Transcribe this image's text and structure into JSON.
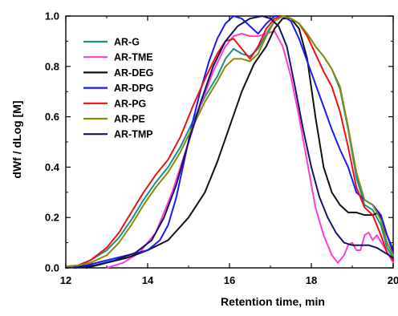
{
  "chart_data": {
    "type": "line",
    "xlabel": "Retention time, min",
    "ylabel": "dWf / dLog [M]",
    "xlim": [
      12,
      20
    ],
    "ylim": [
      0,
      1.0
    ],
    "xticks": [
      12,
      14,
      16,
      18,
      20
    ],
    "yticks": [
      0.0,
      0.2,
      0.4,
      0.6,
      0.8,
      1.0
    ],
    "x_tick_labels": [
      "12",
      "14",
      "16",
      "18",
      "20"
    ],
    "y_tick_labels": [
      "0.0",
      "0.2",
      "0.4",
      "0.6",
      "0.8",
      "1.0"
    ],
    "grid": false,
    "legend_position": "top-left",
    "series": [
      {
        "name": "AR-G",
        "color": "#1a8f8a",
        "points": [
          [
            12.0,
            0.005
          ],
          [
            12.3,
            0.01
          ],
          [
            12.6,
            0.03
          ],
          [
            13.0,
            0.07
          ],
          [
            13.3,
            0.12
          ],
          [
            13.6,
            0.19
          ],
          [
            13.9,
            0.27
          ],
          [
            14.2,
            0.34
          ],
          [
            14.5,
            0.4
          ],
          [
            14.8,
            0.48
          ],
          [
            15.1,
            0.58
          ],
          [
            15.4,
            0.68
          ],
          [
            15.7,
            0.76
          ],
          [
            15.9,
            0.83
          ],
          [
            16.1,
            0.87
          ],
          [
            16.3,
            0.85
          ],
          [
            16.5,
            0.84
          ],
          [
            16.7,
            0.87
          ],
          [
            16.9,
            0.93
          ],
          [
            17.1,
            0.98
          ],
          [
            17.3,
            1.0
          ],
          [
            17.5,
            0.99
          ],
          [
            17.7,
            0.97
          ],
          [
            17.9,
            0.93
          ],
          [
            18.1,
            0.88
          ],
          [
            18.3,
            0.84
          ],
          [
            18.5,
            0.79
          ],
          [
            18.7,
            0.71
          ],
          [
            18.9,
            0.55
          ],
          [
            19.1,
            0.36
          ],
          [
            19.3,
            0.25
          ],
          [
            19.5,
            0.23
          ],
          [
            19.7,
            0.17
          ],
          [
            19.85,
            0.08
          ],
          [
            20.0,
            0.04
          ]
        ]
      },
      {
        "name": "AR-TME",
        "color": "#ff3cd2",
        "points": [
          [
            13.0,
            0.0
          ],
          [
            13.4,
            0.02
          ],
          [
            13.8,
            0.06
          ],
          [
            14.2,
            0.14
          ],
          [
            14.6,
            0.3
          ],
          [
            15.0,
            0.5
          ],
          [
            15.3,
            0.65
          ],
          [
            15.6,
            0.78
          ],
          [
            15.9,
            0.88
          ],
          [
            16.1,
            0.92
          ],
          [
            16.3,
            0.93
          ],
          [
            16.5,
            0.92
          ],
          [
            16.7,
            0.92
          ],
          [
            16.9,
            0.93
          ],
          [
            17.1,
            0.94
          ],
          [
            17.3,
            0.88
          ],
          [
            17.5,
            0.76
          ],
          [
            17.7,
            0.6
          ],
          [
            17.9,
            0.42
          ],
          [
            18.1,
            0.24
          ],
          [
            18.3,
            0.13
          ],
          [
            18.5,
            0.05
          ],
          [
            18.65,
            0.02
          ],
          [
            18.8,
            0.05
          ],
          [
            18.9,
            0.09
          ],
          [
            19.0,
            0.1
          ],
          [
            19.1,
            0.07
          ],
          [
            19.2,
            0.07
          ],
          [
            19.3,
            0.13
          ],
          [
            19.4,
            0.14
          ],
          [
            19.5,
            0.11
          ],
          [
            19.6,
            0.13
          ],
          [
            19.75,
            0.09
          ],
          [
            19.9,
            0.05
          ],
          [
            20.0,
            0.02
          ]
        ]
      },
      {
        "name": "AR-DEG",
        "color": "#111111",
        "points": [
          [
            12.5,
            0.0
          ],
          [
            13.0,
            0.02
          ],
          [
            13.5,
            0.04
          ],
          [
            14.0,
            0.07
          ],
          [
            14.5,
            0.11
          ],
          [
            15.0,
            0.2
          ],
          [
            15.4,
            0.3
          ],
          [
            15.7,
            0.42
          ],
          [
            16.0,
            0.56
          ],
          [
            16.3,
            0.7
          ],
          [
            16.6,
            0.81
          ],
          [
            16.9,
            0.88
          ],
          [
            17.1,
            0.95
          ],
          [
            17.3,
            0.99
          ],
          [
            17.5,
            0.99
          ],
          [
            17.7,
            0.95
          ],
          [
            17.9,
            0.83
          ],
          [
            18.1,
            0.6
          ],
          [
            18.3,
            0.4
          ],
          [
            18.5,
            0.3
          ],
          [
            18.7,
            0.25
          ],
          [
            18.9,
            0.22
          ],
          [
            19.1,
            0.22
          ],
          [
            19.3,
            0.21
          ],
          [
            19.5,
            0.21
          ],
          [
            19.65,
            0.22
          ],
          [
            19.8,
            0.15
          ],
          [
            20.0,
            0.07
          ]
        ]
      },
      {
        "name": "AR-DPG",
        "color": "#1a1aff",
        "points": [
          [
            12.0,
            0.0
          ],
          [
            12.5,
            0.01
          ],
          [
            13.0,
            0.03
          ],
          [
            13.5,
            0.05
          ],
          [
            14.0,
            0.07
          ],
          [
            14.3,
            0.11
          ],
          [
            14.5,
            0.17
          ],
          [
            14.7,
            0.28
          ],
          [
            14.9,
            0.43
          ],
          [
            15.1,
            0.58
          ],
          [
            15.3,
            0.71
          ],
          [
            15.5,
            0.82
          ],
          [
            15.7,
            0.91
          ],
          [
            15.9,
            0.97
          ],
          [
            16.1,
            1.0
          ],
          [
            16.3,
            0.99
          ],
          [
            16.5,
            0.96
          ],
          [
            16.7,
            0.93
          ],
          [
            16.9,
            0.97
          ],
          [
            17.1,
            1.0
          ],
          [
            17.3,
            1.0
          ],
          [
            17.5,
            0.98
          ],
          [
            17.7,
            0.91
          ],
          [
            17.9,
            0.82
          ],
          [
            18.1,
            0.73
          ],
          [
            18.3,
            0.64
          ],
          [
            18.5,
            0.55
          ],
          [
            18.7,
            0.47
          ],
          [
            18.9,
            0.4
          ],
          [
            19.1,
            0.3
          ],
          [
            19.3,
            0.27
          ],
          [
            19.5,
            0.25
          ],
          [
            19.7,
            0.21
          ],
          [
            19.85,
            0.13
          ],
          [
            20.0,
            0.06
          ]
        ]
      },
      {
        "name": "AR-PG",
        "color": "#ee1111",
        "points": [
          [
            12.0,
            0.005
          ],
          [
            12.3,
            0.01
          ],
          [
            12.6,
            0.03
          ],
          [
            13.0,
            0.08
          ],
          [
            13.3,
            0.14
          ],
          [
            13.6,
            0.22
          ],
          [
            13.9,
            0.3
          ],
          [
            14.2,
            0.37
          ],
          [
            14.5,
            0.43
          ],
          [
            14.8,
            0.52
          ],
          [
            15.1,
            0.64
          ],
          [
            15.4,
            0.75
          ],
          [
            15.7,
            0.85
          ],
          [
            15.9,
            0.9
          ],
          [
            16.1,
            0.91
          ],
          [
            16.3,
            0.87
          ],
          [
            16.5,
            0.83
          ],
          [
            16.7,
            0.88
          ],
          [
            16.9,
            0.95
          ],
          [
            17.1,
            0.99
          ],
          [
            17.3,
            1.0
          ],
          [
            17.5,
            0.99
          ],
          [
            17.7,
            0.97
          ],
          [
            17.9,
            0.92
          ],
          [
            18.1,
            0.85
          ],
          [
            18.3,
            0.78
          ],
          [
            18.5,
            0.72
          ],
          [
            18.7,
            0.62
          ],
          [
            18.9,
            0.48
          ],
          [
            19.1,
            0.32
          ],
          [
            19.3,
            0.24
          ],
          [
            19.5,
            0.21
          ],
          [
            19.7,
            0.13
          ],
          [
            19.85,
            0.06
          ],
          [
            20.0,
            0.03
          ]
        ]
      },
      {
        "name": "AR-PE",
        "color": "#8a8a10",
        "points": [
          [
            12.0,
            0.005
          ],
          [
            12.3,
            0.01
          ],
          [
            12.6,
            0.02
          ],
          [
            13.0,
            0.05
          ],
          [
            13.3,
            0.1
          ],
          [
            13.6,
            0.17
          ],
          [
            13.9,
            0.25
          ],
          [
            14.2,
            0.32
          ],
          [
            14.5,
            0.38
          ],
          [
            14.8,
            0.46
          ],
          [
            15.1,
            0.56
          ],
          [
            15.4,
            0.66
          ],
          [
            15.7,
            0.74
          ],
          [
            15.9,
            0.8
          ],
          [
            16.1,
            0.83
          ],
          [
            16.3,
            0.83
          ],
          [
            16.5,
            0.82
          ],
          [
            16.7,
            0.85
          ],
          [
            16.9,
            0.92
          ],
          [
            17.1,
            0.98
          ],
          [
            17.3,
            1.0
          ],
          [
            17.5,
            0.99
          ],
          [
            17.7,
            0.97
          ],
          [
            17.9,
            0.93
          ],
          [
            18.1,
            0.88
          ],
          [
            18.3,
            0.84
          ],
          [
            18.5,
            0.79
          ],
          [
            18.7,
            0.72
          ],
          [
            18.9,
            0.56
          ],
          [
            19.1,
            0.38
          ],
          [
            19.3,
            0.27
          ],
          [
            19.5,
            0.25
          ],
          [
            19.7,
            0.19
          ],
          [
            19.85,
            0.1
          ],
          [
            20.0,
            0.05
          ]
        ]
      },
      {
        "name": "AR-TMP",
        "color": "#141466",
        "points": [
          [
            12.2,
            0.0
          ],
          [
            12.7,
            0.01
          ],
          [
            13.2,
            0.03
          ],
          [
            13.7,
            0.06
          ],
          [
            14.1,
            0.11
          ],
          [
            14.4,
            0.2
          ],
          [
            14.7,
            0.33
          ],
          [
            15.0,
            0.5
          ],
          [
            15.3,
            0.66
          ],
          [
            15.6,
            0.8
          ],
          [
            15.9,
            0.9
          ],
          [
            16.2,
            0.96
          ],
          [
            16.5,
            0.99
          ],
          [
            16.8,
            1.0
          ],
          [
            17.0,
            0.99
          ],
          [
            17.2,
            0.96
          ],
          [
            17.4,
            0.88
          ],
          [
            17.6,
            0.72
          ],
          [
            17.8,
            0.55
          ],
          [
            18.0,
            0.4
          ],
          [
            18.2,
            0.28
          ],
          [
            18.4,
            0.2
          ],
          [
            18.6,
            0.14
          ],
          [
            18.8,
            0.1
          ],
          [
            19.0,
            0.09
          ],
          [
            19.2,
            0.09
          ],
          [
            19.4,
            0.09
          ],
          [
            19.6,
            0.08
          ],
          [
            19.8,
            0.06
          ],
          [
            20.0,
            0.04
          ]
        ]
      }
    ]
  }
}
